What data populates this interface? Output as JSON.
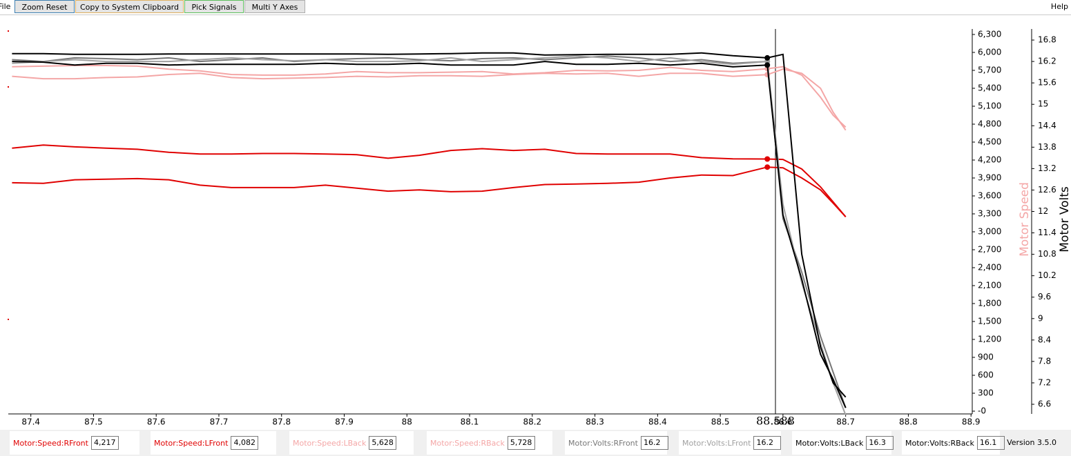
{
  "menu": {
    "file": "File",
    "help": "Help"
  },
  "toolbar": {
    "buttons": [
      "Zoom Reset",
      "Copy to System Clipboard",
      "Pick Signals",
      "Multi Y Axes"
    ]
  },
  "chart_data": {
    "type": "line",
    "ylabel": "Motor Speed",
    "ylabel_color": "#f4a6a6",
    "y2label": "Motor Volts",
    "y2label_color": "#000000",
    "x": [
      87.37,
      87.42,
      87.47,
      87.52,
      87.57,
      87.62,
      87.67,
      87.72,
      87.77,
      87.82,
      87.87,
      87.92,
      87.97,
      88.02,
      88.07,
      88.12,
      88.17,
      88.22,
      88.27,
      88.32,
      88.37,
      88.42,
      88.47,
      88.52,
      88.575,
      88.6,
      88.63,
      88.66,
      88.68,
      88.7
    ],
    "cursor": 88.588,
    "xlim": [
      87.364,
      88.902
    ],
    "xticks": [
      87.4,
      87.5,
      87.6,
      87.7,
      87.8,
      87.9,
      88,
      88.1,
      88.2,
      88.3,
      88.4,
      88.5,
      88.6,
      88.7,
      88.8,
      88.9
    ],
    "ylim": [
      -46,
      6392
    ],
    "yticks": [
      {
        "value": 6300,
        "label": "6,300"
      },
      {
        "value": 6000,
        "label": "6,000"
      },
      {
        "value": 5700,
        "label": "5,700"
      },
      {
        "value": 5400,
        "label": "5,400"
      },
      {
        "value": 5100,
        "label": "5,100"
      },
      {
        "value": 4800,
        "label": "4,800"
      },
      {
        "value": 4500,
        "label": "4,500"
      },
      {
        "value": 4200,
        "label": "4,200"
      },
      {
        "value": 3900,
        "label": "3,900"
      },
      {
        "value": 3600,
        "label": "3,600"
      },
      {
        "value": 3300,
        "label": "3,300"
      },
      {
        "value": 3000,
        "label": "3,000"
      },
      {
        "value": 2700,
        "label": "2,700"
      },
      {
        "value": 2400,
        "label": "2,400"
      },
      {
        "value": 2100,
        "label": "2,100"
      },
      {
        "value": 1800,
        "label": "1,800"
      },
      {
        "value": 1500,
        "label": "1,500"
      },
      {
        "value": 1200,
        "label": "1,200"
      },
      900,
      600,
      300,
      {
        "value": 0,
        "label": "-0"
      }
    ],
    "y2lim": [
      6.33,
      17.11
    ],
    "y2ticks": [
      16.8,
      16.2,
      15.6,
      15,
      14.4,
      13.8,
      13.2,
      12.6,
      12,
      11.4,
      10.8,
      10.2,
      9.6,
      9,
      8.4,
      7.8,
      7.2,
      6.6
    ],
    "series": [
      {
        "name": "Motor:Speed:RFront",
        "color": "#e00000",
        "axis": "y",
        "values": [
          4400,
          4450,
          4420,
          4400,
          4380,
          4330,
          4300,
          4300,
          4310,
          4310,
          4300,
          4290,
          4230,
          4280,
          4360,
          4390,
          4360,
          4380,
          4310,
          4300,
          4300,
          4300,
          4240,
          4220,
          4217,
          4210,
          4050,
          3750,
          3500,
          3250
        ]
      },
      {
        "name": "Motor:Speed:LFront",
        "color": "#e00000",
        "axis": "y",
        "values": [
          3820,
          3810,
          3870,
          3880,
          3890,
          3870,
          3780,
          3740,
          3740,
          3740,
          3780,
          3730,
          3680,
          3700,
          3670,
          3680,
          3740,
          3790,
          3800,
          3810,
          3830,
          3900,
          3950,
          3940,
          4082,
          4070,
          3900,
          3700,
          3480,
          3250
        ]
      },
      {
        "name": "Motor:Speed:LBack",
        "color": "#f4a6a6",
        "axis": "y",
        "values": [
          5600,
          5560,
          5560,
          5580,
          5590,
          5630,
          5650,
          5580,
          5560,
          5570,
          5580,
          5600,
          5590,
          5610,
          5610,
          5600,
          5630,
          5650,
          5640,
          5650,
          5600,
          5650,
          5650,
          5600,
          5628,
          5720,
          5650,
          5400,
          5000,
          4700
        ]
      },
      {
        "name": "Motor:Speed:RBack",
        "color": "#f4a6a6",
        "axis": "y",
        "values": [
          5760,
          5770,
          5780,
          5780,
          5770,
          5720,
          5690,
          5630,
          5620,
          5620,
          5640,
          5680,
          5660,
          5660,
          5670,
          5680,
          5640,
          5660,
          5700,
          5690,
          5700,
          5750,
          5700,
          5680,
          5728,
          5760,
          5620,
          5250,
          4950,
          4750
        ]
      },
      {
        "name": "Motor:Volts:RFront",
        "color": "#777777",
        "axis": "y2",
        "values": [
          16.25,
          16.2,
          16.3,
          16.28,
          16.25,
          16.3,
          16.2,
          16.25,
          16.3,
          16.2,
          16.25,
          16.28,
          16.3,
          16.25,
          16.22,
          16.28,
          16.3,
          16.25,
          16.3,
          16.35,
          16.3,
          16.2,
          16.25,
          16.15,
          16.2,
          11.8,
          10.3,
          8.5,
          7.5,
          6.5
        ]
      },
      {
        "name": "Motor:Volts:LFront",
        "color": "#a0a0a0",
        "axis": "y2",
        "values": [
          16.15,
          16.2,
          16.25,
          16.2,
          16.2,
          16.2,
          16.25,
          16.3,
          16.25,
          16.22,
          16.25,
          16.2,
          16.2,
          16.22,
          16.3,
          16.2,
          16.25,
          16.3,
          16.35,
          16.3,
          16.2,
          16.3,
          16.2,
          16.12,
          16.2,
          12.2,
          10,
          8.3,
          7.2,
          6.3
        ]
      },
      {
        "name": "Motor:Volts:LBack",
        "color": "#000000",
        "axis": "y2",
        "values": [
          16.42,
          16.42,
          16.4,
          16.4,
          16.4,
          16.41,
          16.41,
          16.41,
          16.41,
          16.41,
          16.41,
          16.41,
          16.4,
          16.41,
          16.42,
          16.44,
          16.44,
          16.38,
          16.39,
          16.4,
          16.4,
          16.4,
          16.44,
          16.36,
          16.3,
          16.4,
          10.8,
          8.2,
          7.2,
          6.8
        ]
      },
      {
        "name": "Motor:Volts:RBack",
        "color": "#000000",
        "axis": "y2",
        "values": [
          16.2,
          16.18,
          16.1,
          16.15,
          16.15,
          16.1,
          16.12,
          16.12,
          16.12,
          16.12,
          16.15,
          16.12,
          16.12,
          16.15,
          16.1,
          16.1,
          16.1,
          16.2,
          16.12,
          16.12,
          16.15,
          16.1,
          16.15,
          16.05,
          16.1,
          11.9,
          10.1,
          8,
          7.3,
          6.5
        ]
      }
    ]
  },
  "readouts": [
    {
      "label": "Motor:Speed:RFront",
      "value": "4,217"
    },
    {
      "label": "Motor:Speed:LFront",
      "value": "4,082"
    },
    {
      "label": "Motor:Speed:LBack",
      "value": "5,628"
    },
    {
      "label": "Motor:Speed:RBack",
      "value": "5,728"
    },
    {
      "label": "Motor:Volts:RFront",
      "value": "16.2"
    },
    {
      "label": "Motor:Volts:LFront",
      "value": "16.2"
    },
    {
      "label": "Motor:Volts:LBack",
      "value": "16.3"
    },
    {
      "label": "Motor:Volts:RBack",
      "value": "16.1"
    }
  ],
  "version": "Version 3.5.0"
}
